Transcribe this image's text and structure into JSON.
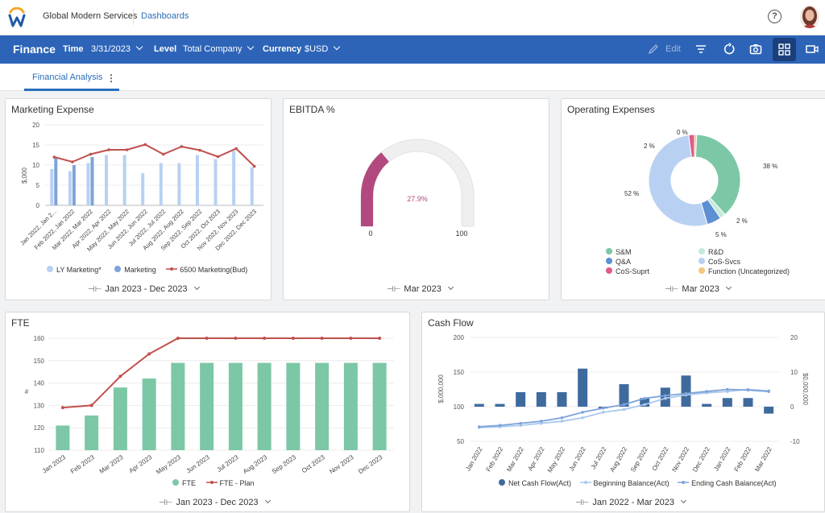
{
  "app": {
    "org_name": "Global Modern Services",
    "breadcrumb": "Dashboards",
    "help_label": "?"
  },
  "toolbar": {
    "title": "Finance",
    "time_label": "Time",
    "time_value": "3/31/2023",
    "level_label": "Level",
    "level_value": "Total Company",
    "currency_label": "Currency",
    "currency_value": "$USD",
    "edit_label": "Edit",
    "icons": [
      "pencil-icon",
      "filter-icon",
      "refresh-icon",
      "camera-icon",
      "grid-view-icon",
      "video-icon"
    ]
  },
  "tabs": [
    {
      "label": "Financial Analysis",
      "menu": "⋮"
    }
  ],
  "colors": {
    "brand_blue": "#2d64b8",
    "accent_red": "#c0504d",
    "green": "#7cc7a5",
    "light_blue": "#b8d1f3",
    "dark_blue": "#4a7bb8",
    "pink": "#b2497e"
  },
  "marketing": {
    "title": "Marketing Expense",
    "ylabel": "$,000",
    "period": "Jan 2023 - Dec 2023",
    "legend": [
      "LY Marketing*",
      "Marketing",
      "6500 Marketing(Bud)"
    ]
  },
  "ebitda": {
    "title": "EBITDA %",
    "period": "Mar 2023",
    "value_label": "27.9%",
    "min_label": "0",
    "max_label": "100"
  },
  "opex": {
    "title": "Operating Expenses",
    "period": "Mar 2023",
    "slice_labels": [
      "38 %",
      "2 %",
      "5 %",
      "52 %",
      "2 %",
      "0 %"
    ],
    "legend": [
      "S&M",
      "R&D",
      "Q&A",
      "CoS-Svcs",
      "CoS-Suprt",
      "Function (Uncategorized)"
    ]
  },
  "fte": {
    "title": "FTE",
    "ylabel": "#",
    "period": "Jan 2023 - Dec 2023",
    "legend": [
      "FTE",
      "FTE - Plan"
    ]
  },
  "cashflow": {
    "title": "Cash Flow",
    "ylabel_left": "$,000,000",
    "ylabel_right": "$0,000,000",
    "period": "Jan 2022 - Mar 2023",
    "legend": [
      "Net Cash Flow(Act)",
      "Beginning Balance(Act)",
      "Ending Cash Balance(Act)"
    ]
  },
  "chart_data": [
    {
      "type": "bar",
      "title": "Marketing Expense",
      "ylabel": "$,000",
      "ylim": [
        0,
        20
      ],
      "yticks": [
        0,
        5,
        10,
        15,
        20
      ],
      "categories": [
        "Jan 2022, Jan 2...",
        "Feb 2022, Jan 2022",
        "Mar 2022, Mar 2022",
        "Apr 2022, Apr 2022",
        "May 2022, May 2022",
        "Jun 2022, Jun 2022",
        "Jul 2022, Jul 2022",
        "Aug 2022, Aug 2022",
        "Sep 2022, Sep 2022",
        "Oct 2022, Oct 2023",
        "Nov 2022, Nov 2023",
        "Dec 2022, Dec 2023"
      ],
      "series": [
        {
          "name": "LY Marketing*",
          "values": [
            9,
            8.5,
            10.5,
            12.5,
            12.5,
            8,
            10.5,
            10.5,
            12.5,
            11.5,
            13.5,
            9.5
          ]
        },
        {
          "name": "Marketing",
          "values": [
            12,
            10,
            12,
            null,
            null,
            null,
            null,
            null,
            null,
            null,
            null,
            null
          ]
        },
        {
          "name": "6500 Marketing(Bud)",
          "values": [
            12,
            10.8,
            12.7,
            13.8,
            13.8,
            15.1,
            12.7,
            14.6,
            13.7,
            12.1,
            14.1,
            9.7
          ]
        }
      ]
    },
    {
      "type": "gauge",
      "title": "EBITDA %",
      "value": 27.9,
      "range": [
        0,
        100
      ]
    },
    {
      "type": "pie",
      "title": "Operating Expenses",
      "labels": [
        "S&M",
        "R&D",
        "Q&A",
        "CoS-Svcs",
        "CoS-Suprt",
        "Function (Uncategorized)"
      ],
      "values": [
        38,
        2,
        5,
        52,
        2,
        0
      ],
      "slice_colors": [
        "#7cc7a5",
        "#c4ead9",
        "#5d8fd3",
        "#b8d1f3",
        "#e05a8a",
        "#f2c87a"
      ]
    },
    {
      "type": "bar",
      "title": "FTE",
      "ylabel": "#",
      "ylim": [
        110,
        160
      ],
      "yticks": [
        110,
        120,
        130,
        140,
        150,
        160
      ],
      "categories": [
        "Jan 2023",
        "Feb 2023",
        "Mar 2023",
        "Apr 2023",
        "May 2023",
        "Jun 2023",
        "Jul 2023",
        "Aug 2023",
        "Sep 2023",
        "Oct 2023",
        "Nov 2023",
        "Dec 2023"
      ],
      "series": [
        {
          "name": "FTE",
          "values": [
            121,
            125.5,
            138,
            142,
            149,
            149,
            149,
            149,
            149,
            149,
            149,
            149
          ]
        },
        {
          "name": "FTE - Plan",
          "values": [
            129,
            130,
            143,
            153,
            160,
            160,
            160,
            160,
            160,
            160,
            160,
            160
          ]
        }
      ]
    },
    {
      "type": "bar",
      "title": "Cash Flow",
      "ylabel_left": "$,000,000",
      "ylabel_right": "$0,000,000",
      "ylim_left": [
        50,
        200
      ],
      "yticks_left": [
        50,
        100,
        150,
        200
      ],
      "ylim_right": [
        -10,
        20
      ],
      "yticks_right": [
        -10,
        0,
        10,
        20
      ],
      "categories": [
        "Jan 2022",
        "Feb 2022",
        "Mar 2022",
        "Apr 2022",
        "May 2022",
        "Jun 2022",
        "Jul 2022",
        "Aug 2022",
        "Sep 2022",
        "Oct 2022",
        "Nov 2022",
        "Dec 2022",
        "Jan 2022",
        "Feb 2022",
        "Mar 2022"
      ],
      "series": [
        {
          "name": "Net Cash Flow(Act)",
          "axis": "right",
          "values": [
            0.8,
            0.8,
            4.2,
            4.2,
            4.2,
            11,
            -0.5,
            6.5,
            2.5,
            5.5,
            9,
            0.8,
            2.5,
            2.5,
            -2
          ]
        },
        {
          "name": "Beginning Balance(Act)",
          "axis": "left",
          "values": [
            70,
            71,
            73,
            76,
            79,
            84,
            92,
            96,
            103,
            112,
            117,
            120,
            122,
            125,
            123
          ]
        },
        {
          "name": "Ending Cash Balance(Act)",
          "axis": "left",
          "values": [
            71,
            73,
            76,
            79,
            84,
            92,
            98,
            103,
            112,
            116,
            119,
            122,
            125,
            124,
            122
          ]
        }
      ]
    }
  ]
}
